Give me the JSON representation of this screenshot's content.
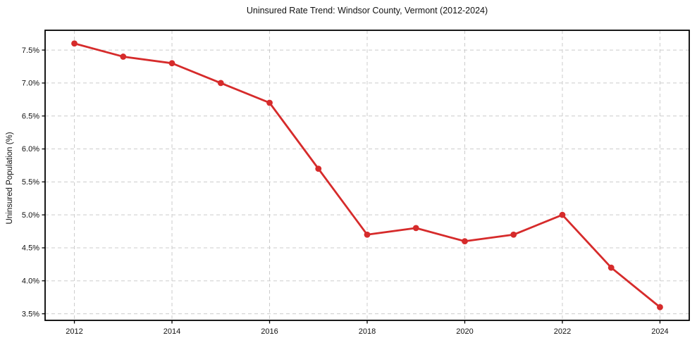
{
  "chart_data": {
    "type": "line",
    "title": "Uninsured Rate Trend: Windsor County, Vermont (2012-2024)",
    "xlabel": "",
    "ylabel": "Uninsured Population (%)",
    "x": [
      2012,
      2013,
      2014,
      2015,
      2016,
      2017,
      2018,
      2019,
      2020,
      2021,
      2022,
      2023,
      2024
    ],
    "series": [
      {
        "name": "Uninsured Rate",
        "values": [
          7.6,
          7.4,
          7.3,
          7.0,
          6.7,
          5.7,
          4.7,
          4.8,
          4.6,
          4.7,
          5.0,
          4.2,
          3.6
        ]
      }
    ],
    "xlim": [
      2011.4,
      2024.6
    ],
    "ylim": [
      3.4,
      7.8
    ],
    "x_ticks": [
      2012,
      2014,
      2016,
      2018,
      2020,
      2022,
      2024
    ],
    "x_tick_labels": [
      "2012",
      "2014",
      "2016",
      "2018",
      "2020",
      "2022",
      "2024"
    ],
    "y_ticks": [
      3.5,
      4.0,
      4.5,
      5.0,
      5.5,
      6.0,
      6.5,
      7.0,
      7.5
    ],
    "y_tick_labels": [
      "3.5%",
      "4.0%",
      "4.5%",
      "5.0%",
      "5.5%",
      "6.0%",
      "6.5%",
      "7.0%",
      "7.5%"
    ],
    "grid": true,
    "legend": "none",
    "colors": {
      "line": "#d62b2b",
      "marker": "#d62b2b",
      "grid": "#cccccc",
      "spine": "#000000",
      "background": "#ffffff",
      "text": "#111111"
    }
  }
}
